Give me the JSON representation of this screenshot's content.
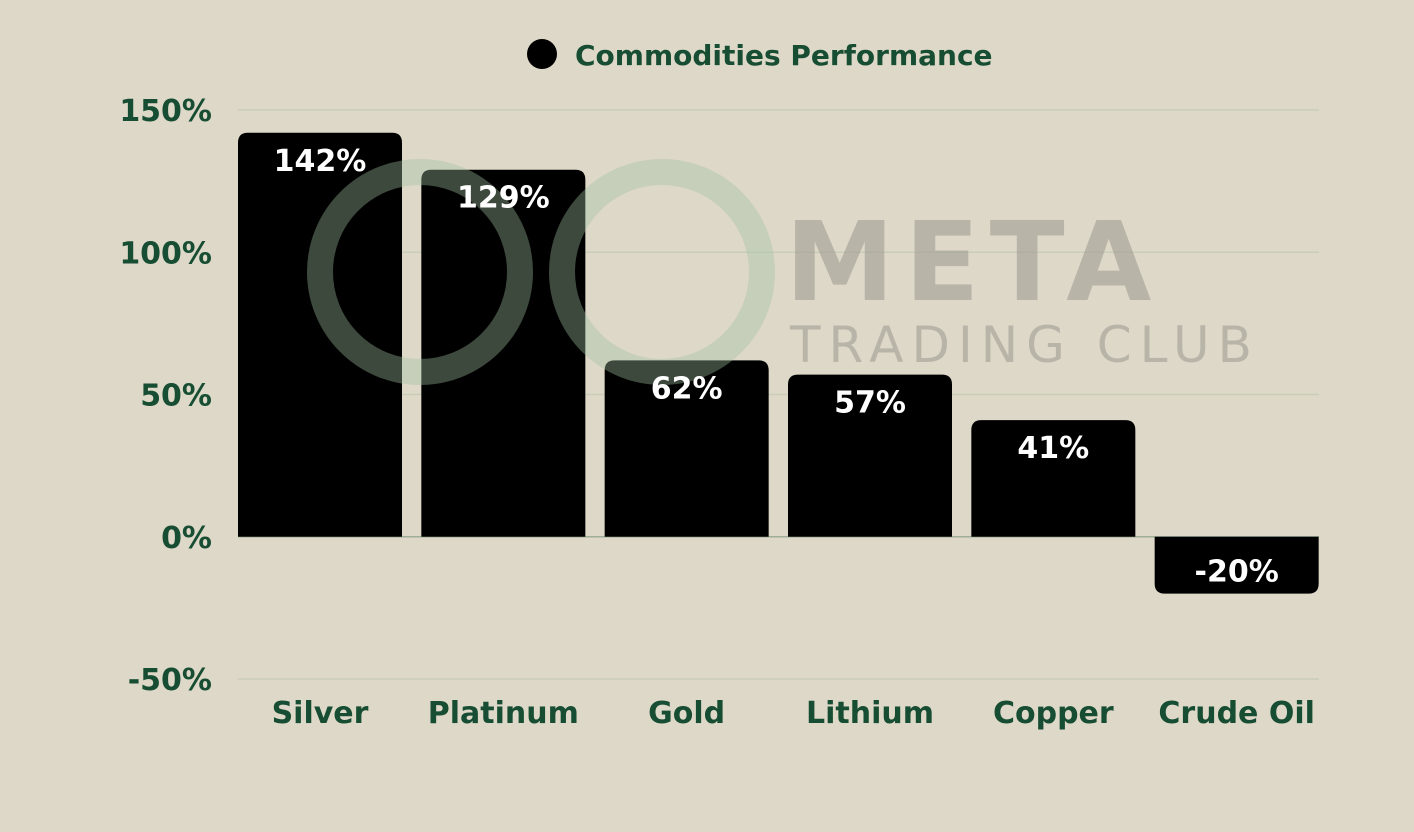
{
  "chart_data": {
    "type": "bar",
    "title": "",
    "xlabel": "",
    "ylabel": "",
    "categories": [
      "Silver",
      "Platinum",
      "Gold",
      "Lithium",
      "Copper",
      "Crude Oil"
    ],
    "series": [
      {
        "name": "Commodities Performance",
        "values": [
          142,
          129,
          62,
          57,
          41,
          -20
        ],
        "color": "#000000"
      }
    ],
    "data_labels": [
      "142%",
      "129%",
      "62%",
      "57%",
      "41%",
      "-20%"
    ],
    "ylim": [
      -50,
      150
    ],
    "yticks": [
      150,
      100,
      50,
      0,
      -50
    ],
    "ytick_labels": [
      "150%",
      "100%",
      "50%",
      "0%",
      "-50%"
    ],
    "grid": true,
    "legend": "top-center",
    "colors": {
      "background": "#ded8c8",
      "text": "#174d32",
      "bar": "#000000",
      "grid": "#c9cdb8"
    }
  },
  "watermark": {
    "line1": "META",
    "line2": "TRADING CLUB"
  }
}
